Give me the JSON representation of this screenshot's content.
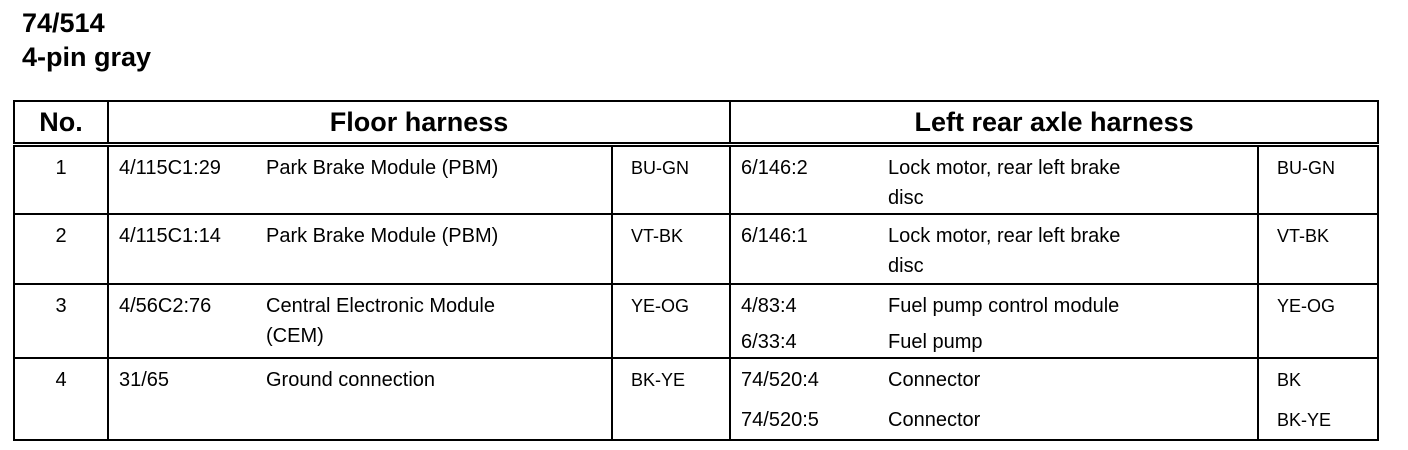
{
  "title": {
    "line1": "74/514",
    "line2": "4-pin gray"
  },
  "headers": {
    "no": "No.",
    "floor": "Floor harness",
    "left_rear": "Left rear axle harness"
  },
  "rows": [
    {
      "no": "1",
      "floor": {
        "code": "4/115C1:29",
        "desc": "Park Brake Module (PBM)",
        "color": "BU-GN"
      },
      "rear": [
        {
          "code": "6/146:2",
          "desc": "Lock motor, rear left brake disc",
          "color": "BU-GN"
        }
      ]
    },
    {
      "no": "2",
      "floor": {
        "code": "4/115C1:14",
        "desc": "Park Brake Module (PBM)",
        "color": "VT-BK"
      },
      "rear": [
        {
          "code": "6/146:1",
          "desc": "Lock motor, rear left brake disc",
          "color": "VT-BK"
        }
      ]
    },
    {
      "no": "3",
      "floor": {
        "code": "4/56C2:76",
        "desc": "Central Electronic Module (CEM)",
        "color": "YE-OG"
      },
      "rear": [
        {
          "code": "4/83:4",
          "desc": "Fuel pump control module",
          "color": "YE-OG"
        },
        {
          "code": "6/33:4",
          "desc": "Fuel pump",
          "color": ""
        }
      ]
    },
    {
      "no": "4",
      "floor": {
        "code": "31/65",
        "desc": "Ground connection",
        "color": "BK-YE"
      },
      "rear": [
        {
          "code": "74/520:4",
          "desc": "Connector",
          "color": "BK"
        },
        {
          "code": "74/520:5",
          "desc": "Connector",
          "color": "BK-YE"
        }
      ]
    }
  ]
}
